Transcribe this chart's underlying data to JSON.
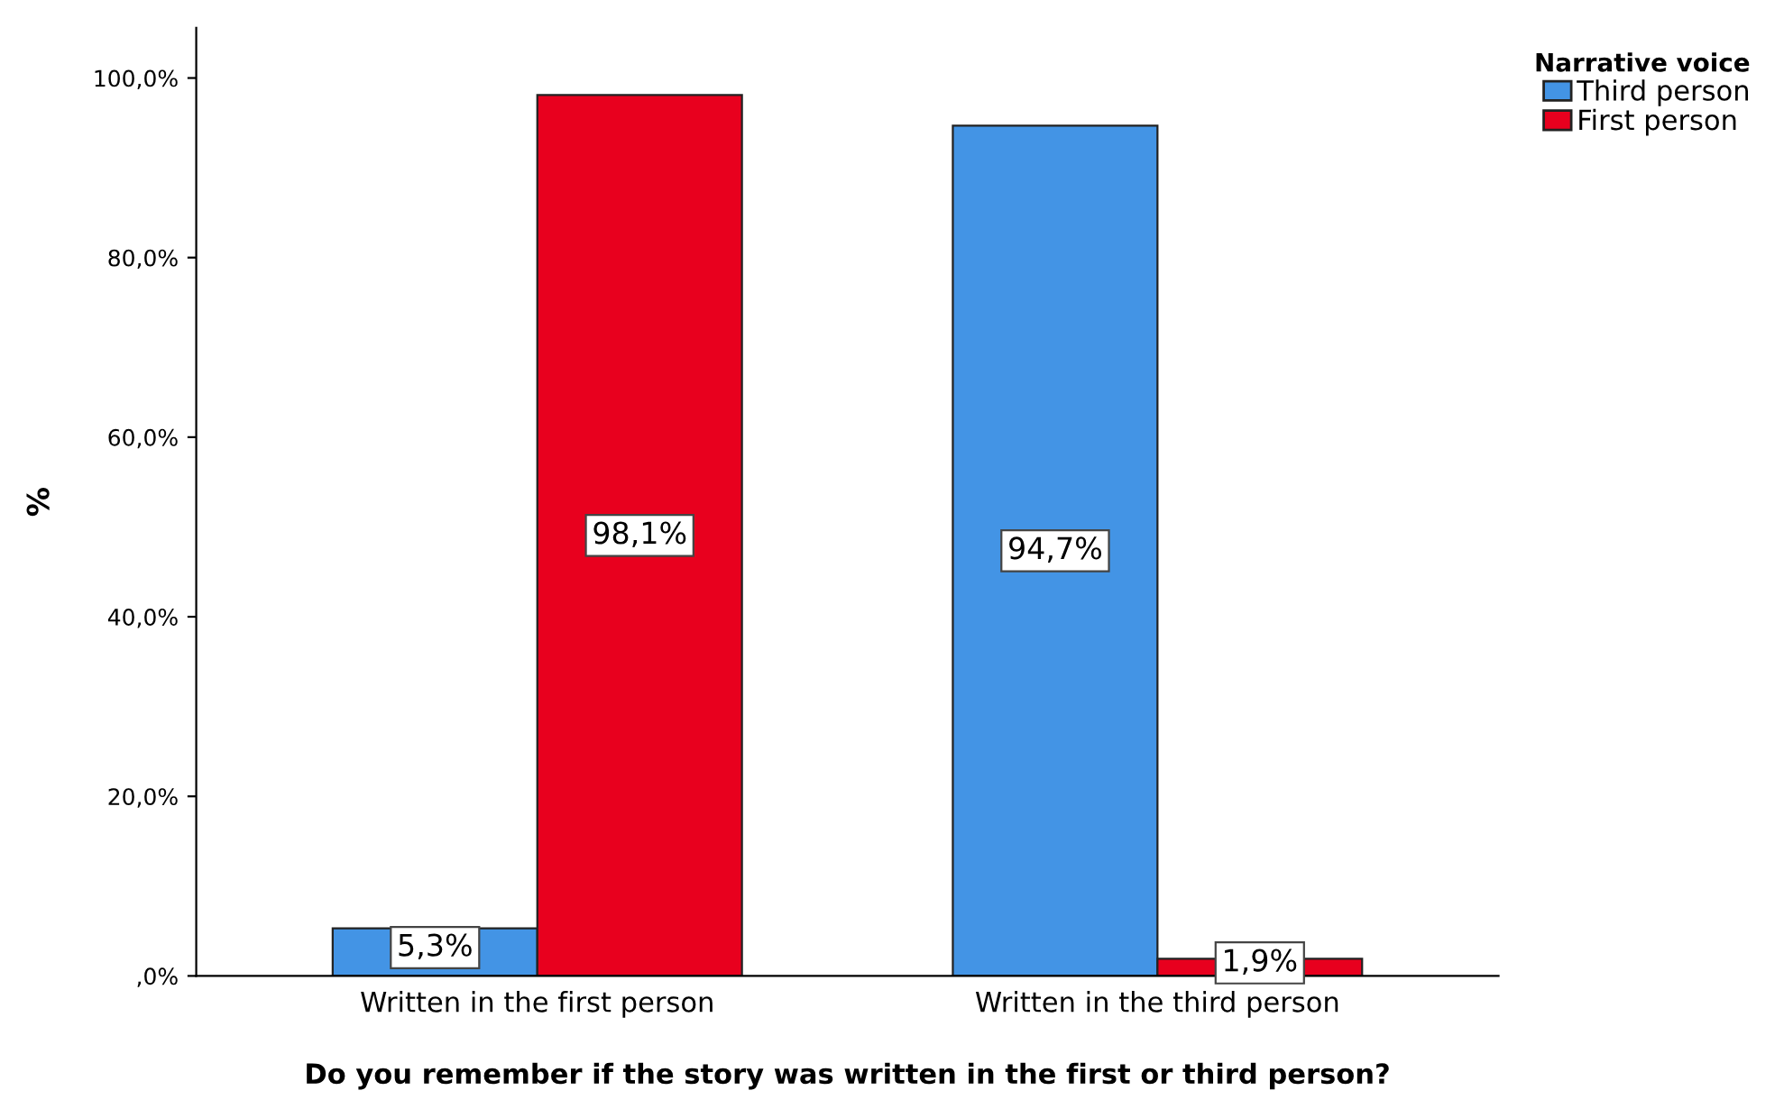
{
  "chart_data": {
    "type": "bar",
    "categories": [
      "Written in the first person",
      "Written in the third person"
    ],
    "series": [
      {
        "name": "Third person",
        "color": "#4394e5",
        "values": [
          5.3,
          94.7
        ],
        "value_labels": [
          "5,3%",
          "94,7%"
        ]
      },
      {
        "name": "First person",
        "color": "#e8001e",
        "values": [
          98.1,
          1.9
        ],
        "value_labels": [
          "98,1%",
          "1,9%"
        ]
      }
    ],
    "xlabel": "Do you remember if the story was written in the first or third person?",
    "ylabel": "%",
    "legend_title": "Narrative voice",
    "legend": "top right",
    "ylim": [
      0,
      105.6
    ],
    "yticks": [
      {
        "value": 0,
        "label": ",0%"
      },
      {
        "value": 20,
        "label": "20,0%"
      },
      {
        "value": 40,
        "label": "40,0%"
      },
      {
        "value": 60,
        "label": "60,0%"
      },
      {
        "value": 80,
        "label": "80,0%"
      },
      {
        "value": 100,
        "label": "100,0%"
      }
    ],
    "grid": false
  }
}
